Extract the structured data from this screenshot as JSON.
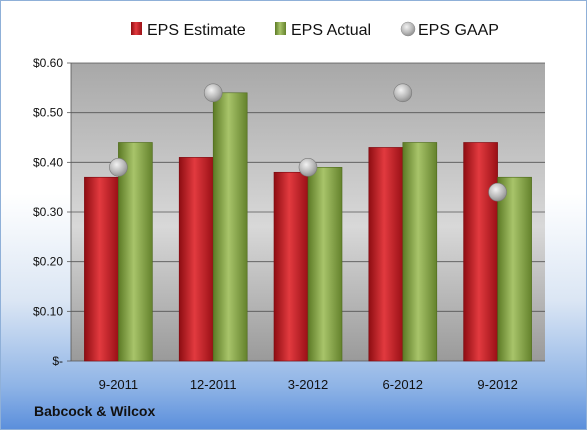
{
  "company": "Babcock & Wilcox",
  "colors": {
    "estimate": "#c0141c",
    "actual": "#7a9a3a",
    "gaap": "#b8b8b8"
  },
  "chart_data": {
    "type": "bar",
    "categories": [
      "9-2011",
      "12-2011",
      "3-2012",
      "6-2012",
      "9-2012"
    ],
    "series": [
      {
        "name": "EPS Estimate",
        "kind": "bar",
        "values": [
          0.37,
          0.41,
          0.38,
          0.43,
          0.44
        ]
      },
      {
        "name": "EPS Actual",
        "kind": "bar",
        "values": [
          0.44,
          0.54,
          0.39,
          0.44,
          0.37
        ]
      },
      {
        "name": "EPS GAAP",
        "kind": "scatter",
        "values": [
          0.39,
          0.54,
          0.39,
          0.54,
          0.34
        ]
      }
    ],
    "ylim": [
      0,
      0.6
    ],
    "yticks": [
      0,
      0.1,
      0.2,
      0.3,
      0.4,
      0.5,
      0.6
    ],
    "ytick_labels": [
      "$-",
      "$0.10",
      "$0.20",
      "$0.30",
      "$0.40",
      "$0.50",
      "$0.60"
    ],
    "grid": true,
    "legend": "top"
  }
}
